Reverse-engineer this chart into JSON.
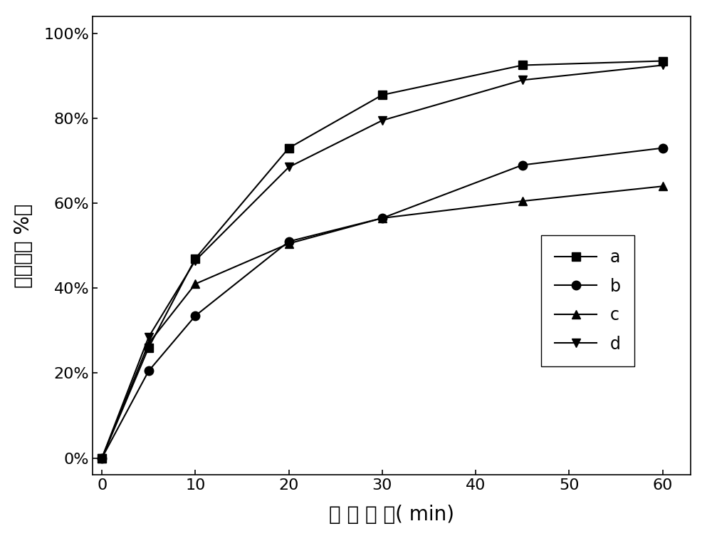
{
  "x": [
    0,
    5,
    10,
    20,
    30,
    45,
    60
  ],
  "series": {
    "a": [
      0.0,
      0.26,
      0.47,
      0.73,
      0.855,
      0.925,
      0.935
    ],
    "b": [
      0.0,
      0.205,
      0.335,
      0.51,
      0.565,
      0.69,
      0.73
    ],
    "c": [
      0.0,
      0.27,
      0.41,
      0.505,
      0.565,
      0.605,
      0.64
    ],
    "d": [
      0.0,
      0.285,
      0.465,
      0.685,
      0.795,
      0.89,
      0.925
    ]
  },
  "markers": {
    "a": "s",
    "b": "o",
    "c": "^",
    "d": "v"
  },
  "xlabel_parts": [
    "处 理 时 间",
    "( min)"
  ],
  "ylabel": "去除率（ %）",
  "xlim": [
    -1,
    63
  ],
  "ylim": [
    -0.04,
    1.04
  ],
  "yticks": [
    0.0,
    0.2,
    0.4,
    0.6,
    0.8,
    1.0
  ],
  "ytick_labels": [
    "0%",
    "20%",
    "40%",
    "60%",
    "80%",
    "100%"
  ],
  "xticks": [
    0,
    10,
    20,
    30,
    40,
    50,
    60
  ],
  "markersize": 9,
  "linewidth": 1.5,
  "background_color": "#ffffff",
  "legend_fontsize": 17,
  "axis_label_fontsize": 20,
  "tick_fontsize": 16
}
